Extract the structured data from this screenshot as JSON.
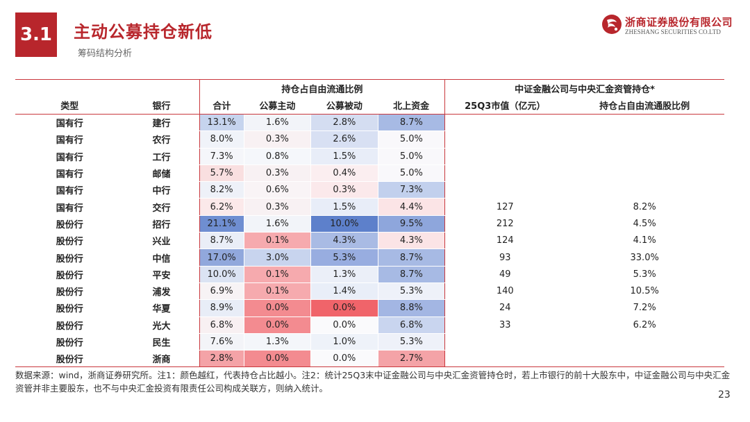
{
  "section_number": "3.1",
  "title": "主动公募持仓新低",
  "subtitle": "筹码结构分析",
  "brand": {
    "cn": "浙商证券股份有限公司",
    "en": "ZHESHANG SECURITIES CO.LTD",
    "color": "#b8262c"
  },
  "table": {
    "group_headers": {
      "holdings": "持仓占自由流通比例",
      "csf": "中证金融公司与中央汇金资管持仓*"
    },
    "col_headers": [
      "类型",
      "银行",
      "合计",
      "公募主动",
      "公募被动",
      "北上资金",
      "25Q3市值（亿元）",
      "持仓占自由流通股比例"
    ],
    "rows": [
      {
        "type": "国有行",
        "bank": "建行",
        "total": "13.1%",
        "active": "1.6%",
        "passive": "2.8%",
        "north": "8.7%",
        "mkt": "",
        "ratio": ""
      },
      {
        "type": "国有行",
        "bank": "农行",
        "total": "8.0%",
        "active": "0.3%",
        "passive": "2.6%",
        "north": "5.0%",
        "mkt": "",
        "ratio": ""
      },
      {
        "type": "国有行",
        "bank": "工行",
        "total": "7.3%",
        "active": "0.8%",
        "passive": "1.5%",
        "north": "5.0%",
        "mkt": "",
        "ratio": ""
      },
      {
        "type": "国有行",
        "bank": "邮储",
        "total": "5.7%",
        "active": "0.3%",
        "passive": "0.4%",
        "north": "5.0%",
        "mkt": "",
        "ratio": ""
      },
      {
        "type": "国有行",
        "bank": "中行",
        "total": "8.2%",
        "active": "0.6%",
        "passive": "0.3%",
        "north": "7.3%",
        "mkt": "",
        "ratio": ""
      },
      {
        "type": "国有行",
        "bank": "交行",
        "total": "6.2%",
        "active": "0.3%",
        "passive": "1.5%",
        "north": "4.4%",
        "mkt": "127",
        "ratio": "8.2%"
      },
      {
        "type": "股份行",
        "bank": "招行",
        "total": "21.1%",
        "active": "1.6%",
        "passive": "10.0%",
        "north": "9.5%",
        "mkt": "212",
        "ratio": "4.5%"
      },
      {
        "type": "股份行",
        "bank": "兴业",
        "total": "8.7%",
        "active": "0.1%",
        "passive": "4.3%",
        "north": "4.3%",
        "mkt": "124",
        "ratio": "4.1%"
      },
      {
        "type": "股份行",
        "bank": "中信",
        "total": "17.0%",
        "active": "3.0%",
        "passive": "5.3%",
        "north": "8.7%",
        "mkt": "93",
        "ratio": "33.0%"
      },
      {
        "type": "股份行",
        "bank": "平安",
        "total": "10.0%",
        "active": "0.1%",
        "passive": "1.3%",
        "north": "8.7%",
        "mkt": "49",
        "ratio": "5.3%"
      },
      {
        "type": "股份行",
        "bank": "浦发",
        "total": "6.9%",
        "active": "0.1%",
        "passive": "1.4%",
        "north": "5.3%",
        "mkt": "140",
        "ratio": "10.5%"
      },
      {
        "type": "股份行",
        "bank": "华夏",
        "total": "8.9%",
        "active": "0.0%",
        "passive": "0.0%",
        "north": "8.8%",
        "mkt": "24",
        "ratio": "7.2%"
      },
      {
        "type": "股份行",
        "bank": "光大",
        "total": "6.8%",
        "active": "0.0%",
        "passive": "0.0%",
        "north": "6.8%",
        "mkt": "33",
        "ratio": "6.2%"
      },
      {
        "type": "股份行",
        "bank": "民生",
        "total": "7.6%",
        "active": "1.3%",
        "passive": "1.0%",
        "north": "5.3%",
        "mkt": "",
        "ratio": ""
      },
      {
        "type": "股份行",
        "bank": "浙商",
        "total": "2.8%",
        "active": "0.0%",
        "passive": "0.0%",
        "north": "2.7%",
        "mkt": "",
        "ratio": ""
      }
    ],
    "heat_colors": {
      "total": [
        "#c6d4ee",
        "#f0f3f9",
        "#f5f6fa",
        "#f9dfe0",
        "#eef1f8",
        "#fbe9ea",
        "#6f8ed1",
        "#eaeef7",
        "#91a8dc",
        "#dbe3f3",
        "#f7f3f5",
        "#e8edf7",
        "#f8f0f2",
        "#f3f4f8",
        "#f4a3a7"
      ],
      "active": [
        "#f2f4f9",
        "#f8f1f3",
        "#f5f7fb",
        "#f8f1f3",
        "#f9f4f6",
        "#f8f1f3",
        "#f2f4f9",
        "#f6aaae",
        "#c8d4ee",
        "#f6aaae",
        "#f6aaae",
        "#f38b90",
        "#f38b90",
        "#f4f6fa",
        "#f38b90"
      ],
      "passive": [
        "#d4ddf1",
        "#d8e0f3",
        "#e8edf8",
        "#fbeef0",
        "#fbe9eb",
        "#e8edf8",
        "#5d80cb",
        "#a9bbe4",
        "#98ade0",
        "#ebeff8",
        "#e9eef8",
        "#f0646a",
        "#fafafc",
        "#eef2f9",
        "#fafafc"
      ],
      "north": [
        "#a7bae4",
        "#f9f8fb",
        "#f9f8fb",
        "#f9f8fb",
        "#c2d0ed",
        "#fbe4e6",
        "#8ea6dc",
        "#fbe4e6",
        "#a7bae4",
        "#a7bae4",
        "#eef1f9",
        "#a3b6e3",
        "#c9d5ef",
        "#eef1f9",
        "#f4a3a7"
      ]
    }
  },
  "note": "数据来源：wind，浙商证券研究所。注1：颜色越红，代表持仓占比越小。注2：统计25Q3末中证金融公司与中央汇金资管持仓时，若上市银行的前十大股东中，中证金融公司与中央汇金资管并非主要股东，也不与中央汇金投资有限责任公司构成关联方，则纳入统计。",
  "page_number": "23"
}
